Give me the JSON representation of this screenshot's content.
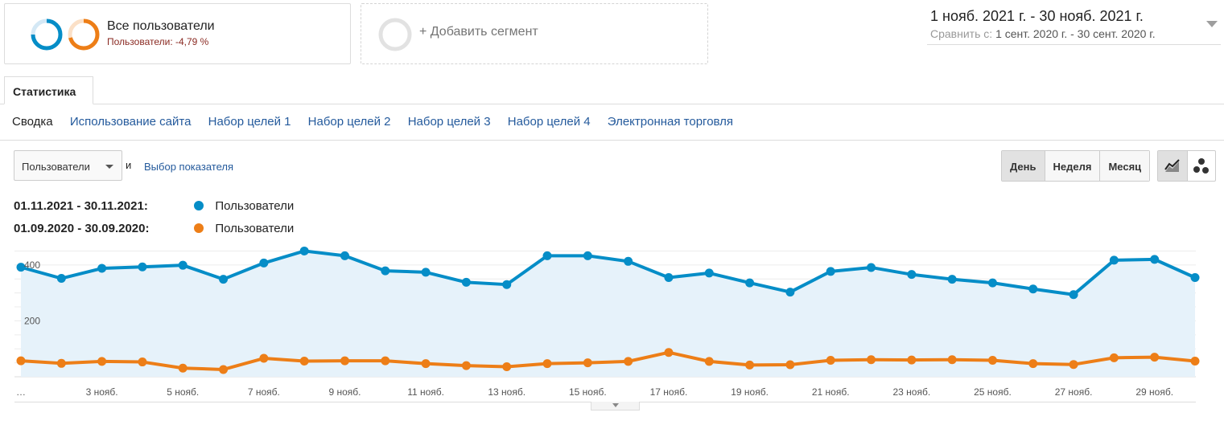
{
  "segments": {
    "all": {
      "title": "Все пользователи",
      "subtitle": "Пользователи: -4,79 %"
    },
    "add": {
      "label": "+ Добавить сегмент"
    }
  },
  "date_range": {
    "main": "1 нояб. 2021 г. - 30 нояб. 2021 г.",
    "compare_label": "Сравнить с:",
    "compare_value": "1 сент. 2020 г. - 30 сент. 2020 г."
  },
  "tabs": [
    {
      "label": "Статистика"
    }
  ],
  "subnav": [
    {
      "label": "Сводка",
      "current": true
    },
    {
      "label": "Использование сайта"
    },
    {
      "label": "Набор целей 1"
    },
    {
      "label": "Набор целей 2"
    },
    {
      "label": "Набор целей 3"
    },
    {
      "label": "Набор целей 4"
    },
    {
      "label": "Электронная торговля"
    }
  ],
  "controls": {
    "metric_select": "Пользователи",
    "and_text": "и",
    "choose_metric": "Выбор показателя",
    "periods": [
      "День",
      "Неделя",
      "Месяц"
    ],
    "active_period": "День",
    "views": [
      {
        "icon": "line-chart-icon",
        "active": true
      },
      {
        "icon": "motion-chart-icon"
      }
    ]
  },
  "colors": {
    "current": "#058dc7",
    "previous": "#ed7e17",
    "area": "#e6f2fa",
    "link": "#245a9c"
  },
  "legend": [
    {
      "dates": "01.11.2021 - 30.11.2021:",
      "name": "Пользователи",
      "color": "#058dc7"
    },
    {
      "dates": "01.09.2020 - 30.09.2020:",
      "name": "Пользователи",
      "color": "#ed7e17"
    }
  ],
  "chart_data": {
    "type": "line",
    "x": [
      1,
      2,
      3,
      4,
      5,
      6,
      7,
      8,
      9,
      10,
      11,
      12,
      13,
      14,
      15,
      16,
      17,
      18,
      19,
      20,
      21,
      22,
      23,
      24,
      25,
      26,
      27,
      28,
      29,
      30
    ],
    "xtick_labels": [
      "…",
      "3 нояб.",
      "5 нояб.",
      "7 нояб.",
      "9 нояб.",
      "11 нояб.",
      "13 нояб.",
      "15 нояб.",
      "17 нояб.",
      "19 нояб.",
      "21 нояб.",
      "23 нояб.",
      "25 нояб.",
      "27 нояб.",
      "29 нояб."
    ],
    "xtick_positions": [
      1,
      3,
      5,
      7,
      9,
      11,
      13,
      15,
      17,
      19,
      21,
      23,
      25,
      27,
      29
    ],
    "yticks": [
      200,
      400
    ],
    "ylim": [
      0,
      480
    ],
    "area_fill": true,
    "grid": true,
    "series": [
      {
        "name": "Пользователи",
        "color": "#058dc7",
        "values": [
          392,
          352,
          388,
          393,
          399,
          349,
          407,
          450,
          433,
          379,
          374,
          338,
          330,
          433,
          433,
          413,
          355,
          371,
          336,
          303,
          377,
          391,
          366,
          349,
          336,
          314,
          294,
          417,
          420,
          355
        ]
      },
      {
        "name": "Пользователи",
        "color": "#ed7e17",
        "values": [
          57,
          48,
          55,
          53,
          31,
          26,
          66,
          56,
          57,
          57,
          47,
          40,
          36,
          47,
          50,
          55,
          87,
          55,
          42,
          43,
          59,
          61,
          60,
          61,
          59,
          47,
          44,
          68,
          70,
          56
        ]
      }
    ]
  }
}
